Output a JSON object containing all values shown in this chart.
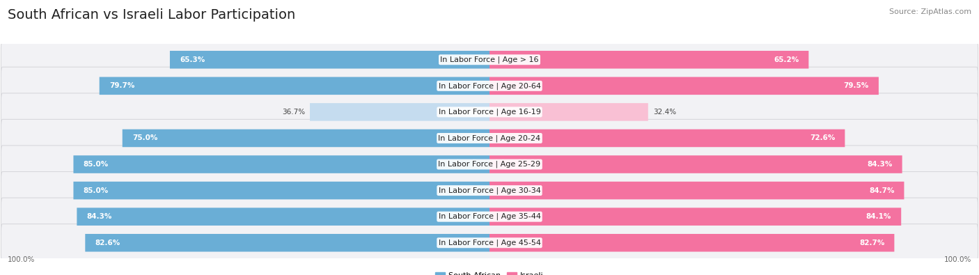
{
  "title": "South African vs Israeli Labor Participation",
  "source": "Source: ZipAtlas.com",
  "categories": [
    "In Labor Force | Age > 16",
    "In Labor Force | Age 20-64",
    "In Labor Force | Age 16-19",
    "In Labor Force | Age 20-24",
    "In Labor Force | Age 25-29",
    "In Labor Force | Age 30-34",
    "In Labor Force | Age 35-44",
    "In Labor Force | Age 45-54"
  ],
  "south_african": [
    65.3,
    79.7,
    36.7,
    75.0,
    85.0,
    85.0,
    84.3,
    82.6
  ],
  "israeli": [
    65.2,
    79.5,
    32.4,
    72.6,
    84.3,
    84.7,
    84.1,
    82.7
  ],
  "sa_color_full": "#6aaed6",
  "sa_color_light": "#c5dcef",
  "il_color_full": "#f472a0",
  "il_color_light": "#f9c0d4",
  "bg_color": "#ffffff",
  "row_bg_color": "#f2f2f5",
  "row_border_color": "#d8d8dc",
  "title_fontsize": 14,
  "label_fontsize": 8,
  "value_fontsize": 7.5,
  "source_fontsize": 8,
  "max_val": 100.0,
  "legend_labels": [
    "South African",
    "Israeli"
  ],
  "light_threshold": 50.0
}
